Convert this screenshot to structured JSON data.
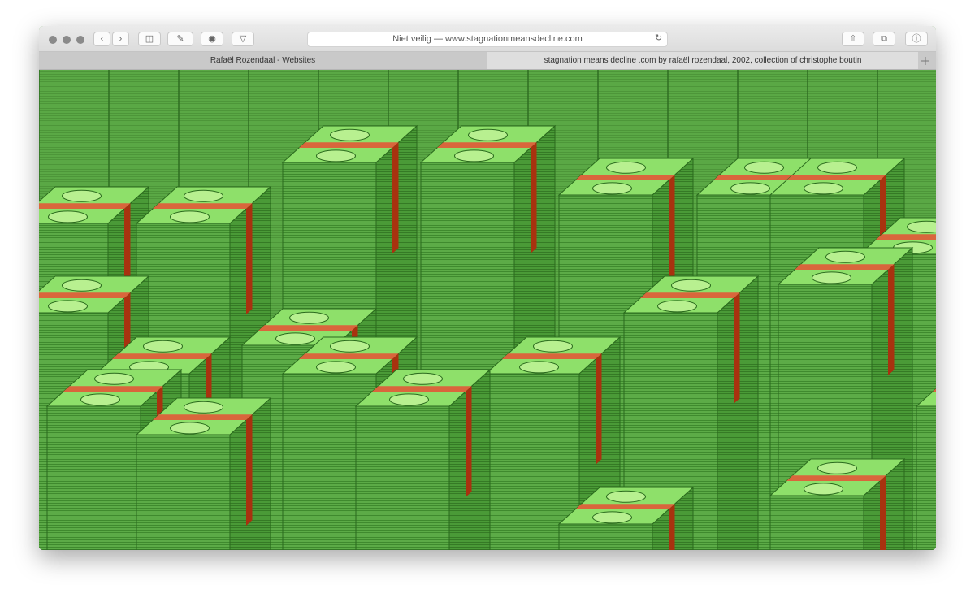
{
  "toolbar": {
    "address": "Niet veilig — www.stagnationmeansdecline.com"
  },
  "tabs": [
    "Rafaël Rozendaal - Websites",
    "stagnation means decline .com by rafaël rozendaal, 2002, collection of christophe boutin"
  ]
}
